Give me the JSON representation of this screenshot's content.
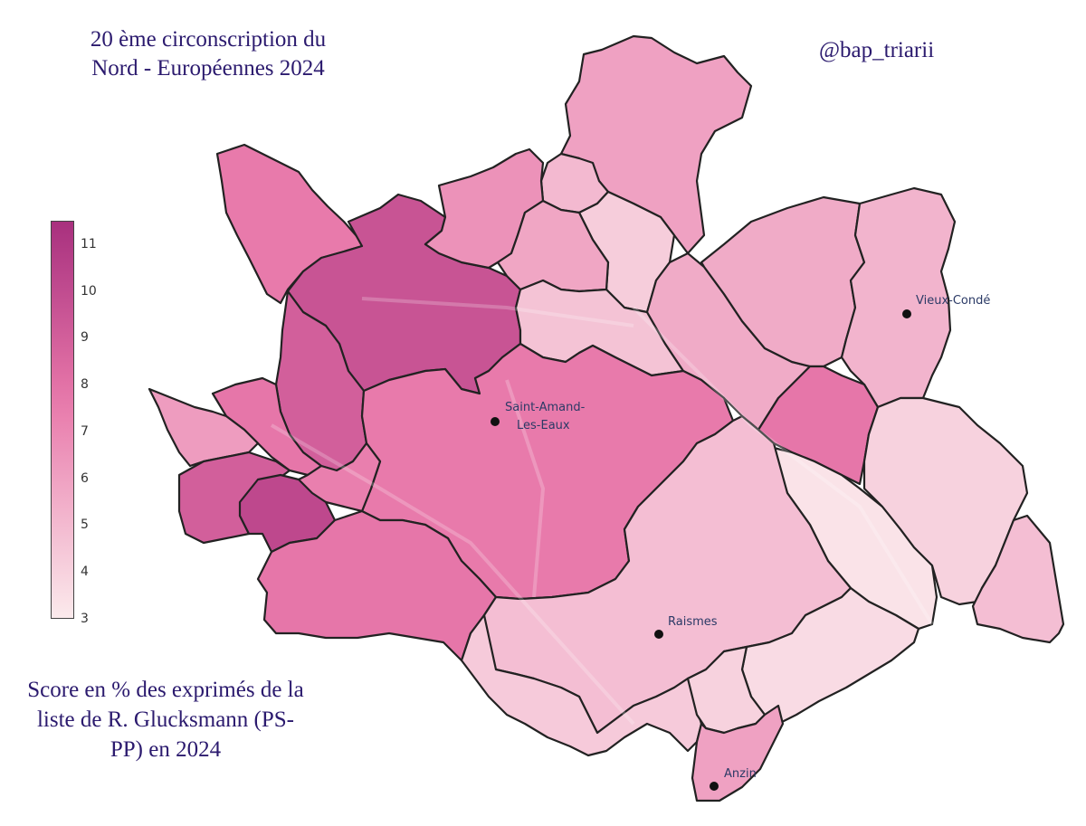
{
  "title_line1": "20 ème circonscription du",
  "title_line2": "Nord - Européennes 2024",
  "handle": "@bap_triarii",
  "caption_line1": "Score en % des exprimés de la",
  "caption_line2": "liste de R. Glucksmann (PS-",
  "caption_line3": "PP) en 2024",
  "colorbar": {
    "min": 3,
    "max": 11.5,
    "ticks": [
      "11",
      "10",
      "9",
      "8",
      "7",
      "6",
      "5",
      "4",
      "3"
    ],
    "color_low": "#fbeaec",
    "color_high": "#a8307e"
  },
  "towns": {
    "saint_amand_1": "Saint-Amand-",
    "saint_amand_2": "Les-Eaux",
    "vieux_conde": "Vieux-Condé",
    "raismes": "Raismes",
    "anzin": "Anzin"
  },
  "communes": [
    {
      "id": "north-big",
      "value": 6.0
    },
    {
      "id": "north-small",
      "value": 5.0
    },
    {
      "id": "north-mid",
      "value": 4.2
    },
    {
      "id": "nw-top",
      "value": 7.6
    },
    {
      "id": "north-center",
      "value": 9.6
    },
    {
      "id": "north-pink",
      "value": 6.6
    },
    {
      "id": "center-pink",
      "value": 5.8
    },
    {
      "id": "center-east",
      "value": 4.6
    },
    {
      "id": "east-band",
      "value": 5.6
    },
    {
      "id": "ne-big",
      "value": 5.6
    },
    {
      "id": "vieux-conde",
      "value": 5.2
    },
    {
      "id": "center-big",
      "value": 9.0
    },
    {
      "id": "saint-amand",
      "value": 7.6
    },
    {
      "id": "west-1",
      "value": 7.8
    },
    {
      "id": "west-2",
      "value": 6.2
    },
    {
      "id": "west-3",
      "value": 7.4
    },
    {
      "id": "sw-1",
      "value": 9.0
    },
    {
      "id": "sw-dark",
      "value": 10.2
    },
    {
      "id": "south-west",
      "value": 7.8
    },
    {
      "id": "east-pink",
      "value": 7.8
    },
    {
      "id": "east-narrow",
      "value": 3.3
    },
    {
      "id": "east-right",
      "value": 4.0
    },
    {
      "id": "far-east",
      "value": 4.8
    },
    {
      "id": "raismes",
      "value": 4.8
    },
    {
      "id": "south-center",
      "value": 4.3
    },
    {
      "id": "south-east",
      "value": 3.6
    },
    {
      "id": "anzin-north",
      "value": 4.0
    },
    {
      "id": "anzin",
      "value": 6.0
    }
  ]
}
